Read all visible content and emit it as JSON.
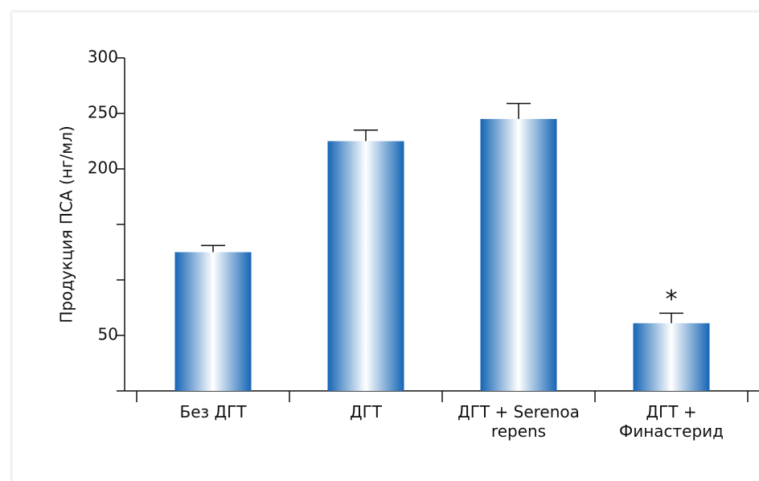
{
  "chart_data": {
    "type": "bar",
    "y_label": "Продукция ПСА (нг/мл)",
    "categories": [
      "Без ДГТ",
      "ДГТ",
      "ДГТ + Serenoa repens",
      "ДГТ + Финастерид"
    ],
    "values": [
      125,
      225,
      245,
      61
    ],
    "errors": [
      6,
      10,
      14,
      9
    ],
    "color": "#1565b4",
    "ylim": [
      0,
      300
    ],
    "yticks": [
      50,
      200,
      250,
      300
    ],
    "annotations": [
      {
        "text": "*",
        "category": 3
      }
    ]
  }
}
